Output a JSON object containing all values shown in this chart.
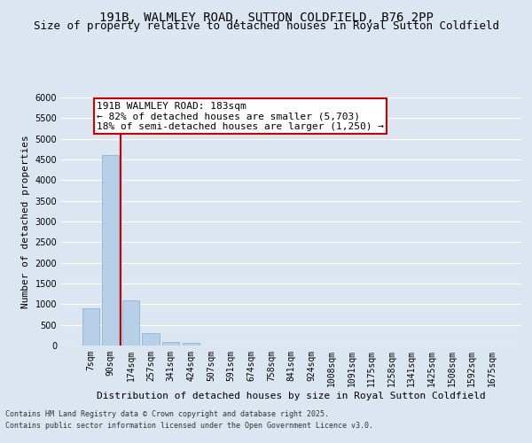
{
  "title_line1": "191B, WALMLEY ROAD, SUTTON COLDFIELD, B76 2PP",
  "title_line2": "Size of property relative to detached houses in Royal Sutton Coldfield",
  "xlabel": "Distribution of detached houses by size in Royal Sutton Coldfield",
  "ylabel": "Number of detached properties",
  "bar_color": "#b8cfe8",
  "bar_edge_color": "#7aafd4",
  "categories": [
    "7sqm",
    "90sqm",
    "174sqm",
    "257sqm",
    "341sqm",
    "424sqm",
    "507sqm",
    "591sqm",
    "674sqm",
    "758sqm",
    "841sqm",
    "924sqm",
    "1008sqm",
    "1091sqm",
    "1175sqm",
    "1258sqm",
    "1341sqm",
    "1425sqm",
    "1508sqm",
    "1592sqm",
    "1675sqm"
  ],
  "values": [
    900,
    4600,
    1100,
    300,
    80,
    55,
    0,
    0,
    0,
    0,
    0,
    0,
    0,
    0,
    0,
    0,
    0,
    0,
    0,
    0,
    0
  ],
  "ylim": [
    0,
    6000
  ],
  "yticks": [
    0,
    500,
    1000,
    1500,
    2000,
    2500,
    3000,
    3500,
    4000,
    4500,
    5000,
    5500,
    6000
  ],
  "property_label": "191B WALMLEY ROAD: 183sqm",
  "annotation_line1": "← 82% of detached houses are smaller (5,703)",
  "annotation_line2": "18% of semi-detached houses are larger (1,250) →",
  "vline_x_index": 2,
  "annotation_box_color": "#ffffff",
  "annotation_border_color": "#cc0000",
  "vline_color": "#cc0000",
  "background_color": "#dce6f0",
  "plot_bg_color": "#dce6f0",
  "grid_color": "#ffffff",
  "footer_line1": "Contains HM Land Registry data © Crown copyright and database right 2025.",
  "footer_line2": "Contains public sector information licensed under the Open Government Licence v3.0.",
  "title_fontsize": 10,
  "subtitle_fontsize": 9,
  "ylabel_fontsize": 8,
  "xlabel_fontsize": 8,
  "tick_fontsize": 7,
  "annot_fontsize": 8,
  "footer_fontsize": 6
}
